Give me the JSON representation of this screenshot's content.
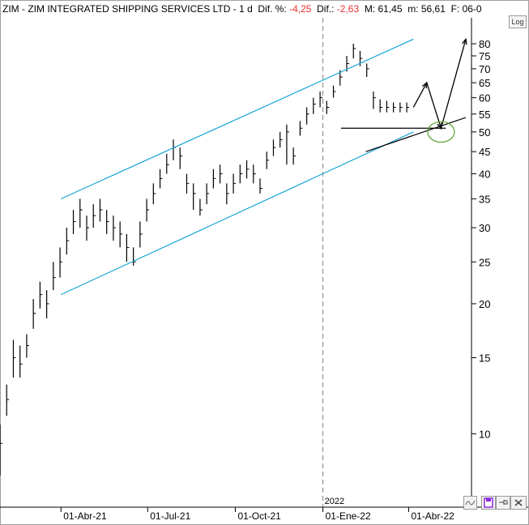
{
  "header": {
    "symbol": "ZIM",
    "sep": " - ",
    "name": "ZIM INTEGRATED SHIPPING SERVICES LTD",
    "period_sep": " -  ",
    "period": "1 d",
    "pct_label": "Dif. %: ",
    "pct_value": "-4,25",
    "dif_label": "Dif.: ",
    "dif_value": "-2,63",
    "max_label": "M: ",
    "max_value": "61,45",
    "min_label": "m: ",
    "min_value": "56,61",
    "date_label": "F: 06-0"
  },
  "toolbar": {
    "log_label": "Log"
  },
  "year_marker": "2022",
  "colors": {
    "candles": "#000000",
    "channel": "#1aa6d8",
    "ellipse": "#5aa02c",
    "divider": "#808080"
  },
  "icons": [
    "wave-icon",
    "save-disk-icon",
    "pin-icon",
    "close-icon"
  ],
  "chart_data": {
    "type": "ohlc",
    "scale": "log",
    "ylim": [
      8,
      85
    ],
    "y_ticks": [
      80,
      75,
      70,
      65,
      60,
      55,
      50,
      45,
      40,
      35,
      30,
      25,
      20,
      15,
      10
    ],
    "x_tick_labels": [
      "01-Abr-21",
      "01-Jul-21",
      "01-Oct-21",
      "01-Ene-22",
      "01-Abr-22"
    ],
    "x_range": [
      "2021-01-27",
      "2022-05-31"
    ],
    "series": [
      {
        "dates": [
          "2021-01-27",
          "2021-02-03",
          "2021-02-10",
          "2021-02-17",
          "2021-02-24",
          "2021-03-03",
          "2021-03-10",
          "2021-03-17",
          "2021-03-24",
          "2021-03-31",
          "2021-04-07",
          "2021-04-14",
          "2021-04-21",
          "2021-04-28",
          "2021-05-05",
          "2021-05-12",
          "2021-05-19",
          "2021-05-26",
          "2021-06-02",
          "2021-06-09",
          "2021-06-16",
          "2021-06-23",
          "2021-06-30",
          "2021-07-07",
          "2021-07-14",
          "2021-07-21",
          "2021-07-28",
          "2021-08-04",
          "2021-08-11",
          "2021-08-18",
          "2021-08-25",
          "2021-09-01",
          "2021-09-08",
          "2021-09-15",
          "2021-09-22",
          "2021-09-29",
          "2021-10-06",
          "2021-10-13",
          "2021-10-20",
          "2021-10-27",
          "2021-11-03",
          "2021-11-10",
          "2021-11-17",
          "2021-11-24",
          "2021-12-01",
          "2021-12-08",
          "2021-12-15",
          "2021-12-22",
          "2021-12-29",
          "2022-01-05",
          "2022-01-12",
          "2022-01-19",
          "2022-01-26",
          "2022-02-02",
          "2022-02-09",
          "2022-02-16",
          "2022-02-23",
          "2022-03-02",
          "2022-03-09",
          "2022-03-16",
          "2022-03-23",
          "2022-03-30"
        ],
        "close": [
          9.5,
          12,
          15,
          14.5,
          16,
          19,
          21,
          20,
          23,
          25,
          28,
          31,
          33,
          30,
          32,
          33,
          31,
          30,
          29,
          27,
          25,
          29,
          33,
          36,
          39,
          42,
          46,
          44,
          38,
          36,
          33,
          36,
          39,
          40,
          36,
          38,
          40,
          41,
          40,
          37,
          43,
          46,
          48,
          50,
          44,
          51,
          55,
          58,
          60,
          57,
          62,
          67,
          72,
          78,
          74,
          70,
          60,
          57,
          57,
          57,
          57,
          57
        ],
        "high": [
          10.5,
          13,
          16.5,
          16,
          17,
          20.5,
          22.5,
          21.5,
          25,
          27,
          30,
          33,
          35,
          32,
          34,
          35,
          33,
          32,
          31,
          29,
          27,
          31,
          35,
          38,
          41,
          44.5,
          48,
          46,
          40,
          38,
          35,
          38,
          41,
          42,
          38,
          40,
          42,
          43,
          42,
          39,
          45,
          48,
          50,
          52,
          46,
          53,
          57,
          60,
          62,
          59,
          64,
          69.5,
          75,
          80,
          77,
          72,
          62,
          59.5,
          59,
          58.5,
          58.5,
          58.5
        ],
        "low": [
          8,
          11,
          13.5,
          13.5,
          15,
          17.5,
          19.5,
          18.5,
          21.5,
          23,
          26,
          29,
          30,
          28,
          30,
          31,
          29,
          28,
          27,
          25,
          24.5,
          27,
          31,
          34,
          37,
          40,
          43,
          41,
          36,
          33,
          32,
          34,
          37,
          38,
          34,
          36,
          38,
          39,
          38,
          36,
          41,
          44,
          46,
          42,
          42,
          49,
          52,
          55,
          57,
          55,
          60,
          64,
          69,
          74,
          71,
          67,
          56.5,
          55.5,
          55.5,
          55.5,
          55.5,
          55.5
        ]
      }
    ],
    "annotations": [
      {
        "type": "trendline",
        "name": "channel-upper",
        "from": [
          "2021-04-01",
          35
        ],
        "to": [
          "2022-04-06",
          82
        ]
      },
      {
        "type": "trendline",
        "name": "channel-lower",
        "from": [
          "2021-04-01",
          21
        ],
        "to": [
          "2022-04-06",
          50
        ]
      },
      {
        "type": "hline",
        "name": "support-line",
        "value": 51,
        "from": "2022-01-20",
        "to": "2022-05-10"
      },
      {
        "type": "trendline",
        "name": "support-rising",
        "from": [
          "2022-02-15",
          45
        ],
        "to": [
          "2022-05-31",
          54
        ]
      },
      {
        "type": "arrow",
        "name": "projection-arrow",
        "path": [
          [
            "2022-04-06",
            57
          ],
          [
            "2022-04-20",
            65
          ],
          [
            "2022-05-05",
            51
          ],
          [
            "2022-05-31",
            82
          ]
        ]
      },
      {
        "type": "ellipse",
        "name": "target-zone",
        "center": [
          "2022-05-05",
          50
        ],
        "rx_days": 14,
        "ry_value": 2.8
      }
    ]
  }
}
